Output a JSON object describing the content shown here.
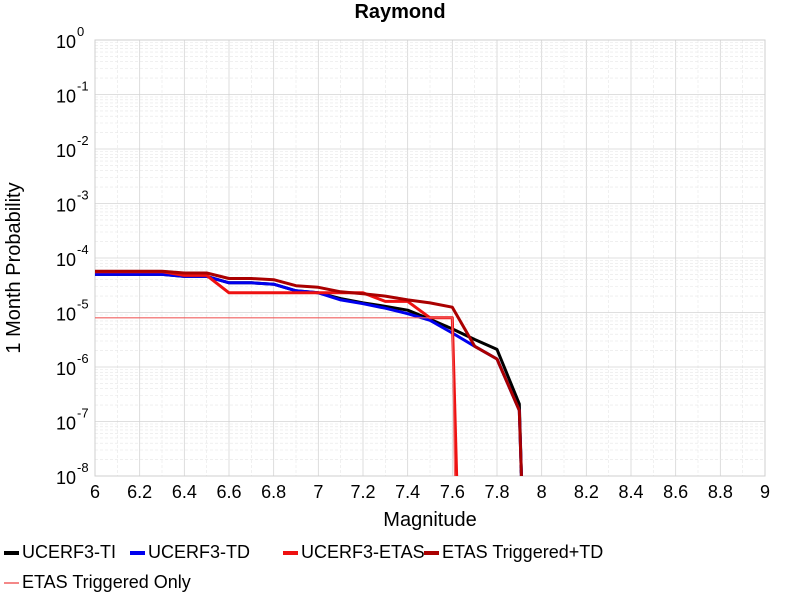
{
  "chart_data": {
    "type": "line",
    "title": "Raymond",
    "xlabel": "Magnitude",
    "ylabel": "1 Month Probability",
    "xlim": [
      6,
      9
    ],
    "ylim": [
      1e-08,
      1
    ],
    "yscale": "log",
    "grid": true,
    "legend_position": "bottom",
    "x_ticks": [
      "6",
      "6.2",
      "6.4",
      "6.6",
      "6.8",
      "7",
      "7.2",
      "7.4",
      "7.6",
      "7.8",
      "8",
      "8.2",
      "8.4",
      "8.6",
      "8.8",
      "9"
    ],
    "y_ticks": [
      {
        "base": "10",
        "exp": "0"
      },
      {
        "base": "10",
        "exp": "-1"
      },
      {
        "base": "10",
        "exp": "-2"
      },
      {
        "base": "10",
        "exp": "-3"
      },
      {
        "base": "10",
        "exp": "-4"
      },
      {
        "base": "10",
        "exp": "-5"
      },
      {
        "base": "10",
        "exp": "-6"
      },
      {
        "base": "10",
        "exp": "-7"
      },
      {
        "base": "10",
        "exp": "-8"
      }
    ],
    "series": [
      {
        "name": "UCERF3-TI",
        "color": "#000000",
        "x": [
          6.0,
          6.3,
          6.4,
          6.5,
          6.6,
          6.7,
          6.8,
          6.9,
          7.0,
          7.1,
          7.2,
          7.3,
          7.4,
          7.5,
          7.6,
          7.7,
          7.8,
          7.9,
          7.91
        ],
        "y": [
          5e-05,
          5e-05,
          4.6e-05,
          4.6e-05,
          3.5e-05,
          3.5e-05,
          3.3e-05,
          2.5e-05,
          2.3e-05,
          1.8e-05,
          1.5e-05,
          1.3e-05,
          1.1e-05,
          7.5e-06,
          5e-06,
          3.2e-06,
          2.1e-06,
          2.1e-07,
          5e-09
        ]
      },
      {
        "name": "UCERF3-TD",
        "color": "#0000ee",
        "x": [
          6.0,
          6.3,
          6.4,
          6.5,
          6.6,
          6.7,
          6.8,
          6.9,
          7.0,
          7.1,
          7.2,
          7.3,
          7.4,
          7.5,
          7.6,
          7.7,
          7.8,
          7.9,
          7.91
        ],
        "y": [
          5e-05,
          5e-05,
          4.6e-05,
          4.6e-05,
          3.5e-05,
          3.5e-05,
          3.3e-05,
          2.5e-05,
          2.3e-05,
          1.7e-05,
          1.45e-05,
          1.2e-05,
          9.5e-06,
          7.2e-06,
          4.2e-06,
          2.4e-06,
          1.4e-06,
          1.6e-07,
          5e-09
        ]
      },
      {
        "name": "UCERF3-ETAS",
        "color": "#ee1111",
        "x": [
          6.0,
          6.3,
          6.4,
          6.5,
          6.6,
          6.7,
          6.8,
          6.9,
          7.0,
          7.1,
          7.2,
          7.3,
          7.4,
          7.5,
          7.6,
          7.62
        ],
        "y": [
          5.6e-05,
          5.6e-05,
          4.8e-05,
          4.8e-05,
          2.3e-05,
          2.3e-05,
          2.3e-05,
          2.3e-05,
          2.3e-05,
          2.3e-05,
          2.3e-05,
          1.6e-05,
          1.6e-05,
          8e-06,
          8e-06,
          5e-09
        ]
      },
      {
        "name": "ETAS Triggered+TD",
        "color": "#aa0000",
        "x": [
          6.0,
          6.3,
          6.4,
          6.5,
          6.6,
          6.7,
          6.8,
          6.9,
          7.0,
          7.1,
          7.2,
          7.3,
          7.4,
          7.5,
          7.6,
          7.7,
          7.8,
          7.9,
          7.91
        ],
        "y": [
          5.7e-05,
          5.7e-05,
          5.3e-05,
          5.3e-05,
          4.2e-05,
          4.2e-05,
          4e-05,
          3.1e-05,
          2.9e-05,
          2.4e-05,
          2.2e-05,
          2e-05,
          1.7e-05,
          1.5e-05,
          1.25e-05,
          2.4e-06,
          1.4e-06,
          1.6e-07,
          5e-09
        ]
      },
      {
        "name": "ETAS Triggered Only",
        "color": "#f06060",
        "thin": true,
        "x": [
          6.0,
          7.6,
          7.61
        ],
        "y": [
          8e-06,
          8e-06,
          5e-09
        ]
      }
    ]
  }
}
